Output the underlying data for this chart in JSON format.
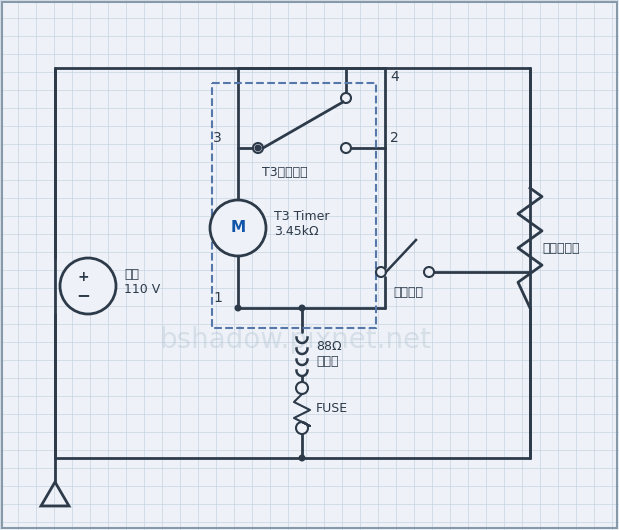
{
  "bg_color": "#EEF2F8",
  "line_color": "#2D3A4A",
  "grid_color": "#C8D4E0",
  "dashed_color": "#5577AA",
  "watermark": "bshadow.pixnet.net",
  "power_label": "電源\n110 V",
  "t3_switch_label": "T3切換阀關",
  "t3_timer_label": "T3 Timer\n3.45kΩ",
  "temp_switch_label": "溫度阀關",
  "heater_label": "88Ω\n電熱絲",
  "fuse_label": "FUSE",
  "compressor_label": "壓縮機負載",
  "node3": "3",
  "node4": "4",
  "node2": "2",
  "node1": "1"
}
